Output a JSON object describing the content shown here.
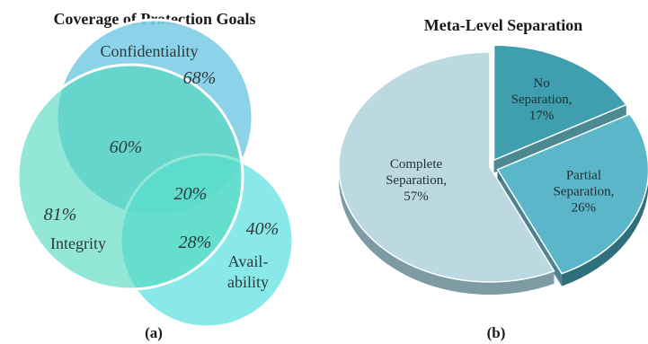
{
  "chart_data": [
    {
      "type": "venn",
      "title": "Coverage of Protection Goals",
      "panel_label": "(a)",
      "sets": [
        {
          "name": "Confidentiality",
          "color": "#7fcde6"
        },
        {
          "name": "Integrity",
          "color": "#5fdcc2"
        },
        {
          "name": "Avail-ability",
          "color": "#6fe3e3"
        }
      ],
      "set_labels": {
        "confidentiality": "Confidentiality",
        "integrity": "Integrity",
        "availability_line1": "Avail-",
        "availability_line2": "ability"
      },
      "values": {
        "confidentiality": "68%",
        "integrity": "81%",
        "availability": "40%",
        "confidentiality_integrity": "60%",
        "integrity_availability": "28%",
        "all_three": "20%"
      }
    },
    {
      "type": "pie",
      "title": "Meta-Level Separation",
      "panel_label": "(b)",
      "slices": [
        {
          "lines": [
            "No",
            "Separation,",
            "17%"
          ],
          "value": 17,
          "color": "#3f9fae",
          "side_color": "#2c7480"
        },
        {
          "lines": [
            "Partial",
            "Separation,",
            "26%"
          ],
          "value": 26,
          "color": "#5ab6c8",
          "side_color": "#2f6f7b"
        },
        {
          "lines": [
            "Complete",
            "Separation,",
            "57%"
          ],
          "value": 57,
          "color": "#bcd9e1",
          "side_color": "#7e9aa3"
        }
      ]
    }
  ]
}
